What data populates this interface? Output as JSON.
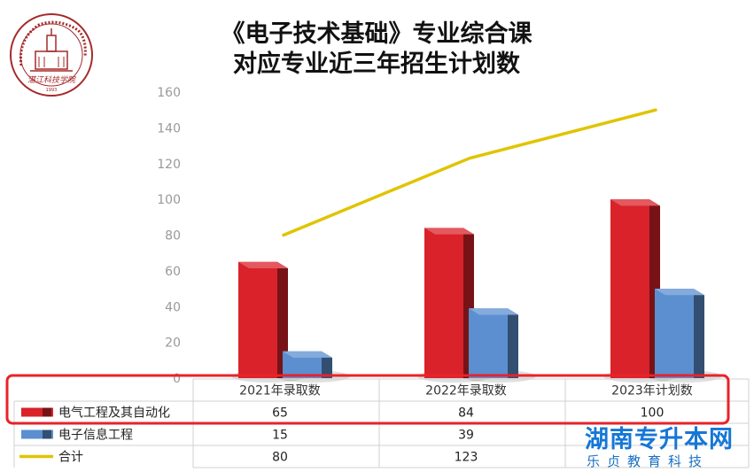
{
  "header": {
    "title_line1": "《电子技术基础》专业综合课",
    "title_line2": "对应专业近三年招生计划数"
  },
  "logo": {
    "icon": "university-seal-icon",
    "signature": "湛江科技学院",
    "year": "1993",
    "color": "#a52a2a"
  },
  "brand": {
    "name": "湖南专升本网",
    "tagline": "乐贞教育科技",
    "color": "#1577d6"
  },
  "chart_data": {
    "type": "bar",
    "subtype": "3d-bar-with-line",
    "categories": [
      "2021年录取数",
      "2022年录取数",
      "2023年计划数"
    ],
    "series": [
      {
        "name": "电气工程及其自动化",
        "type": "bar",
        "values": [
          65,
          84,
          100
        ],
        "color": "#d9222a"
      },
      {
        "name": "电子信息工程",
        "type": "bar",
        "values": [
          15,
          39,
          50
        ],
        "color": "#5b8fd0"
      },
      {
        "name": "合计",
        "type": "line",
        "values": [
          80,
          123,
          150
        ],
        "color": "#e0c400"
      }
    ],
    "yticks": [
      "0",
      "20",
      "40",
      "60",
      "80",
      "100",
      "120",
      "140",
      "160"
    ],
    "ylim": [
      0,
      160
    ],
    "grid": false,
    "legend": "data-table-below",
    "table": {
      "rows": [
        {
          "label": "电气工程及其自动化",
          "cells": [
            "65",
            "84",
            "100"
          ]
        },
        {
          "label": "电子信息工程",
          "cells": [
            "15",
            "39",
            ""
          ]
        },
        {
          "label": "合计",
          "cells": [
            "80",
            "123",
            ""
          ]
        }
      ]
    },
    "annotation": {
      "type": "highlight-box",
      "target": "row:电气工程及其自动化",
      "color": "#e8232a"
    }
  }
}
